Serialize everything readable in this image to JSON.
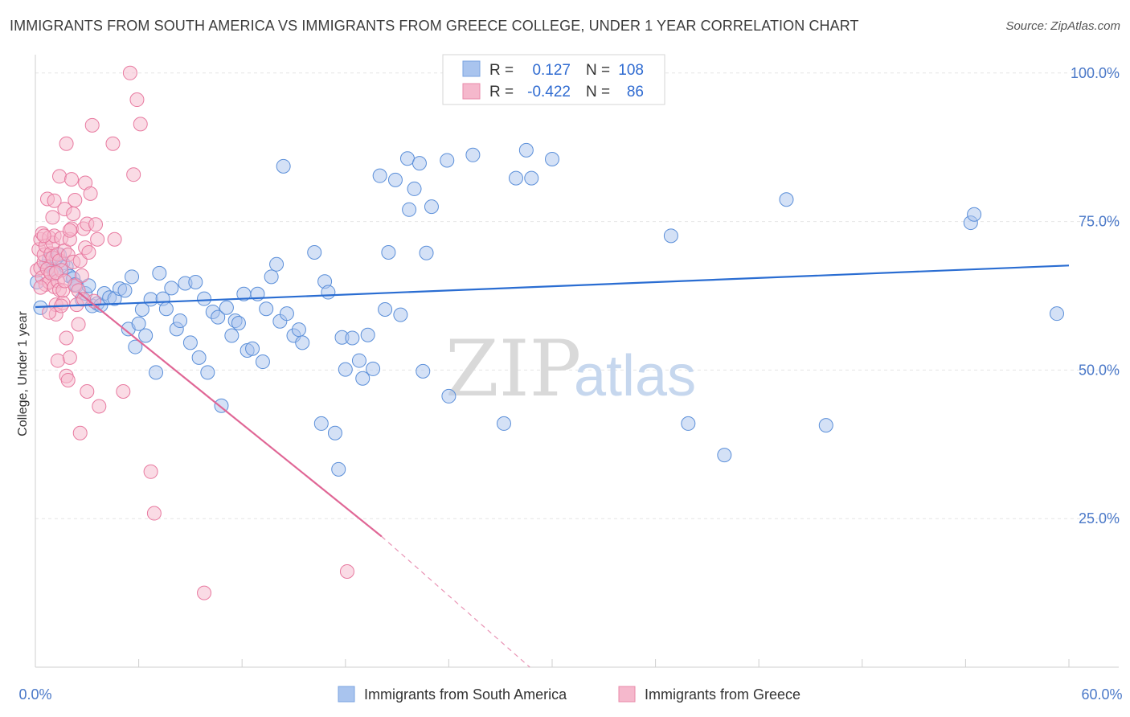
{
  "title": "IMMIGRANTS FROM SOUTH AMERICA VS IMMIGRANTS FROM GREECE COLLEGE, UNDER 1 YEAR CORRELATION CHART",
  "source": "Source: ZipAtlas.com",
  "watermark": {
    "part1": "ZIP",
    "part2": "atlas"
  },
  "legend": {
    "r_label": "R =",
    "n_label": "N =",
    "rows": [
      {
        "r": "0.127",
        "n": "108",
        "color": "#a9c4ee"
      },
      {
        "r": "-0.422",
        "n": "86",
        "color": "#f5b8cc"
      }
    ]
  },
  "bottom_legend": [
    {
      "label": "Immigrants from South America",
      "color": "#a9c4ee"
    },
    {
      "label": "Immigrants from Greece",
      "color": "#f5b8cc"
    }
  ],
  "chart_data": {
    "type": "scatter",
    "title": "IMMIGRANTS FROM SOUTH AMERICA VS IMMIGRANTS FROM GREECE COLLEGE, UNDER 1 YEAR CORRELATION CHART",
    "xlabel": "",
    "ylabel": "College, Under 1 year",
    "xlim": [
      0,
      60
    ],
    "ylim": [
      0,
      102
    ],
    "x_tick_labels": [
      "0.0%",
      "60.0%"
    ],
    "y_ticks": [
      25,
      50,
      75,
      100
    ],
    "y_tick_labels": [
      "25.0%",
      "50.0%",
      "75.0%",
      "100.0%"
    ],
    "series": [
      {
        "name": "Immigrants from South America",
        "color": "#5b8fd9",
        "fill": "#a9c4ee",
        "trend": {
          "x0": 0,
          "y0": 60.6,
          "x1": 60,
          "y1": 67.6,
          "color": "#2a6dd2"
        },
        "points": [
          [
            0.3,
            60.5
          ],
          [
            0.6,
            67.5
          ],
          [
            0.8,
            68.6
          ],
          [
            1.0,
            67.0
          ],
          [
            1.2,
            68.8
          ],
          [
            1.4,
            69.4
          ],
          [
            1.6,
            68.0
          ],
          [
            1.8,
            67.4
          ],
          [
            2.0,
            65.8
          ],
          [
            2.2,
            65.4
          ],
          [
            2.4,
            64.2
          ],
          [
            2.7,
            61.9
          ],
          [
            2.9,
            62.9
          ],
          [
            3.1,
            64.2
          ],
          [
            3.3,
            60.8
          ],
          [
            3.6,
            61.2
          ],
          [
            3.8,
            60.9
          ],
          [
            4.0,
            62.9
          ],
          [
            4.3,
            62.2
          ],
          [
            4.6,
            62.0
          ],
          [
            4.9,
            63.7
          ],
          [
            5.2,
            63.4
          ],
          [
            5.4,
            56.9
          ],
          [
            5.6,
            65.7
          ],
          [
            5.8,
            53.9
          ],
          [
            6.0,
            57.8
          ],
          [
            6.2,
            60.2
          ],
          [
            6.4,
            55.8
          ],
          [
            6.7,
            61.9
          ],
          [
            7.0,
            49.6
          ],
          [
            7.2,
            66.3
          ],
          [
            7.4,
            62.0
          ],
          [
            7.6,
            60.3
          ],
          [
            7.9,
            63.8
          ],
          [
            8.2,
            56.9
          ],
          [
            8.4,
            58.3
          ],
          [
            8.7,
            64.6
          ],
          [
            9.0,
            54.6
          ],
          [
            9.3,
            64.8
          ],
          [
            9.5,
            52.1
          ],
          [
            9.8,
            62.0
          ],
          [
            10.0,
            49.6
          ],
          [
            10.3,
            59.8
          ],
          [
            10.6,
            58.9
          ],
          [
            10.8,
            44.0
          ],
          [
            11.1,
            60.5
          ],
          [
            11.4,
            55.8
          ],
          [
            11.6,
            58.3
          ],
          [
            11.8,
            57.9
          ],
          [
            12.1,
            62.8
          ],
          [
            12.3,
            53.3
          ],
          [
            12.6,
            53.6
          ],
          [
            12.9,
            62.8
          ],
          [
            13.2,
            51.4
          ],
          [
            13.4,
            60.3
          ],
          [
            13.7,
            65.7
          ],
          [
            14.0,
            67.8
          ],
          [
            14.2,
            58.2
          ],
          [
            14.4,
            84.3
          ],
          [
            14.6,
            59.5
          ],
          [
            15.0,
            55.8
          ],
          [
            15.3,
            56.8
          ],
          [
            15.5,
            54.6
          ],
          [
            16.2,
            69.8
          ],
          [
            16.6,
            41.0
          ],
          [
            16.8,
            64.9
          ],
          [
            17.0,
            63.1
          ],
          [
            17.4,
            39.4
          ],
          [
            17.6,
            33.3
          ],
          [
            17.8,
            55.5
          ],
          [
            18.0,
            50.1
          ],
          [
            18.4,
            55.4
          ],
          [
            18.8,
            51.6
          ],
          [
            19.0,
            48.6
          ],
          [
            19.3,
            55.9
          ],
          [
            19.6,
            50.2
          ],
          [
            20.0,
            82.7
          ],
          [
            20.3,
            60.2
          ],
          [
            20.5,
            69.8
          ],
          [
            20.9,
            82.0
          ],
          [
            21.2,
            59.3
          ],
          [
            21.6,
            85.6
          ],
          [
            21.7,
            77.0
          ],
          [
            22.0,
            80.5
          ],
          [
            22.3,
            84.8
          ],
          [
            22.5,
            49.8
          ],
          [
            22.7,
            69.7
          ],
          [
            23.0,
            77.5
          ],
          [
            23.9,
            85.3
          ],
          [
            24.0,
            45.6
          ],
          [
            25.4,
            86.2
          ],
          [
            27.2,
            41.0
          ],
          [
            27.9,
            82.3
          ],
          [
            28.5,
            87.0
          ],
          [
            28.8,
            82.3
          ],
          [
            30.0,
            85.5
          ],
          [
            31.1,
            100.0
          ],
          [
            36.9,
            72.6
          ],
          [
            37.9,
            41.0
          ],
          [
            40.0,
            35.7
          ],
          [
            43.6,
            78.7
          ],
          [
            45.9,
            40.7
          ],
          [
            54.3,
            74.8
          ],
          [
            54.5,
            76.2
          ],
          [
            59.3,
            59.5
          ],
          [
            0.1,
            64.8
          ],
          [
            1.1,
            66.2
          ],
          [
            2.3,
            64.4
          ]
        ]
      },
      {
        "name": "Immigrants from Greece",
        "color": "#e87aa0",
        "fill": "#f5b8cc",
        "trend": {
          "x0": 2.5,
          "y0": 63.1,
          "x1": 20.1,
          "y1": 22.0,
          "color": "#e06796",
          "dash_to": {
            "x": 28.7,
            "y": 0
          }
        },
        "points": [
          [
            0.1,
            66.8
          ],
          [
            0.2,
            70.3
          ],
          [
            0.3,
            72.0
          ],
          [
            0.3,
            67.2
          ],
          [
            0.4,
            65.6
          ],
          [
            0.4,
            73.0
          ],
          [
            0.5,
            68.2
          ],
          [
            0.5,
            69.4
          ],
          [
            0.6,
            64.4
          ],
          [
            0.6,
            70.9
          ],
          [
            0.7,
            67.0
          ],
          [
            0.7,
            78.8
          ],
          [
            0.8,
            72.3
          ],
          [
            0.8,
            64.8
          ],
          [
            0.9,
            69.6
          ],
          [
            0.9,
            66.3
          ],
          [
            1.0,
            71.4
          ],
          [
            1.0,
            68.9
          ],
          [
            1.0,
            75.7
          ],
          [
            1.1,
            78.5
          ],
          [
            1.1,
            72.6
          ],
          [
            1.1,
            64.0
          ],
          [
            1.2,
            61.0
          ],
          [
            1.2,
            59.4
          ],
          [
            1.3,
            51.6
          ],
          [
            1.3,
            65.0
          ],
          [
            1.3,
            69.5
          ],
          [
            1.4,
            82.6
          ],
          [
            1.4,
            68.4
          ],
          [
            1.4,
            63.5
          ],
          [
            1.5,
            72.2
          ],
          [
            1.5,
            66.8
          ],
          [
            1.6,
            61.3
          ],
          [
            1.6,
            63.4
          ],
          [
            1.7,
            77.1
          ],
          [
            1.7,
            70.1
          ],
          [
            1.8,
            55.4
          ],
          [
            1.8,
            49.0
          ],
          [
            1.8,
            88.1
          ],
          [
            1.9,
            69.4
          ],
          [
            1.9,
            48.3
          ],
          [
            2.0,
            52.1
          ],
          [
            2.0,
            72.0
          ],
          [
            2.1,
            82.1
          ],
          [
            2.1,
            73.8
          ],
          [
            2.2,
            76.3
          ],
          [
            2.2,
            68.2
          ],
          [
            2.3,
            64.2
          ],
          [
            2.3,
            78.6
          ],
          [
            2.4,
            61.0
          ],
          [
            2.5,
            57.7
          ],
          [
            2.5,
            63.4
          ],
          [
            2.6,
            68.4
          ],
          [
            2.6,
            39.4
          ],
          [
            2.7,
            65.9
          ],
          [
            2.8,
            73.8
          ],
          [
            2.9,
            70.6
          ],
          [
            2.9,
            81.5
          ],
          [
            3.0,
            46.4
          ],
          [
            3.0,
            74.6
          ],
          [
            3.1,
            69.8
          ],
          [
            3.2,
            79.7
          ],
          [
            3.3,
            91.2
          ],
          [
            3.4,
            61.6
          ],
          [
            3.5,
            74.5
          ],
          [
            3.6,
            72.0
          ],
          [
            3.7,
            43.9
          ],
          [
            4.5,
            88.1
          ],
          [
            4.6,
            72.0
          ],
          [
            5.1,
            46.4
          ],
          [
            5.5,
            100.0
          ],
          [
            5.7,
            82.9
          ],
          [
            5.9,
            95.5
          ],
          [
            6.1,
            91.4
          ],
          [
            6.7,
            32.9
          ],
          [
            6.9,
            25.9
          ],
          [
            9.8,
            12.5
          ],
          [
            18.1,
            16.1
          ],
          [
            0.8,
            59.7
          ],
          [
            1.5,
            60.8
          ],
          [
            2.8,
            61.9
          ],
          [
            0.5,
            72.6
          ],
          [
            1.2,
            66.4
          ],
          [
            2.0,
            73.5
          ],
          [
            0.3,
            63.9
          ],
          [
            1.7,
            65.0
          ]
        ]
      }
    ]
  }
}
